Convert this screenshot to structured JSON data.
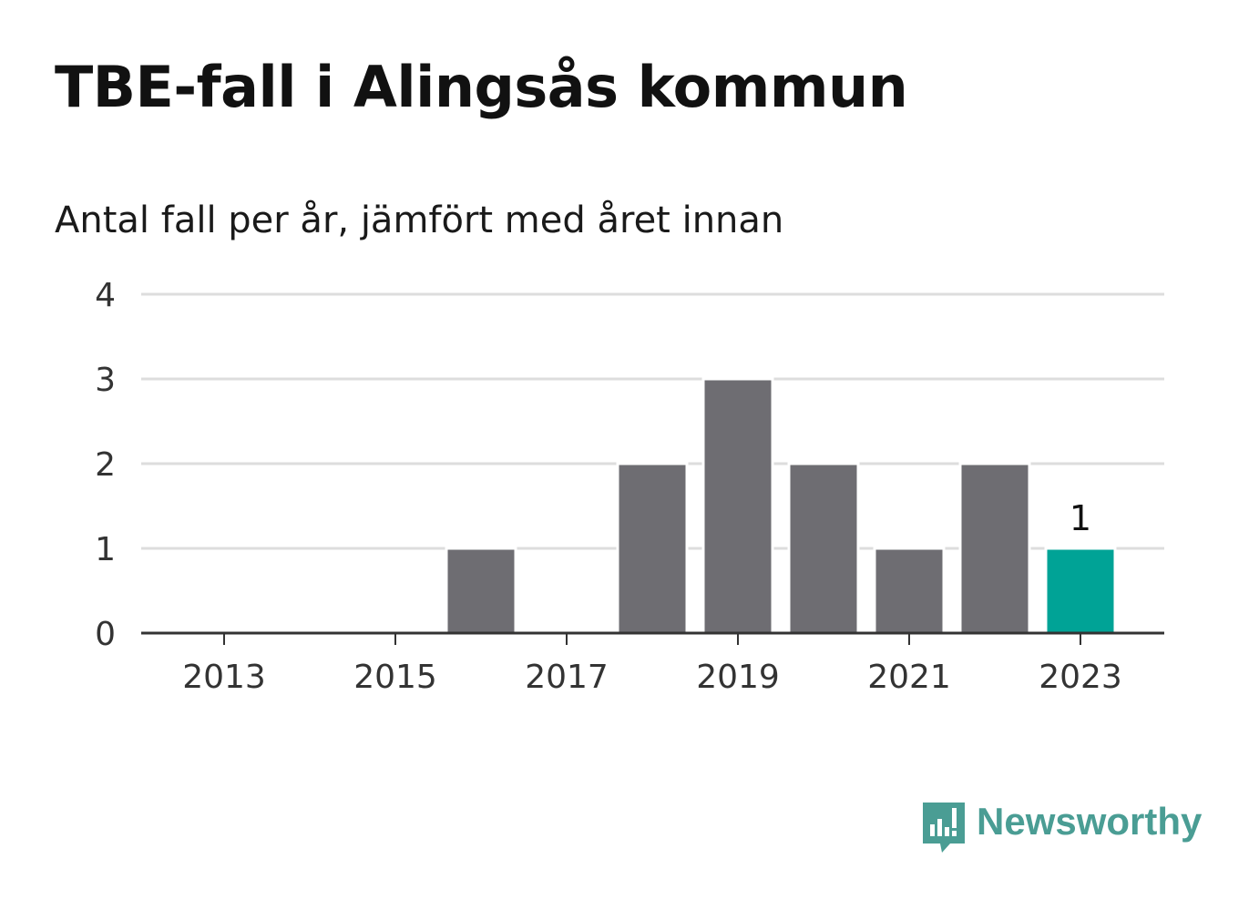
{
  "title": "TBE-fall i Alingsås kommun",
  "subtitle": "Antal fall per år, jämfört med året innan",
  "brand": {
    "name": "Newsworthy",
    "color": "#4a9d94",
    "icon": "bar-chart-speech-bubble-icon"
  },
  "chart_data": {
    "type": "bar",
    "categories": [
      "2013",
      "2014",
      "2015",
      "2016",
      "2017",
      "2018",
      "2019",
      "2020",
      "2021",
      "2022",
      "2023"
    ],
    "values": [
      0,
      0,
      0,
      1,
      0,
      2,
      3,
      2,
      1,
      2,
      1
    ],
    "x_tick_labels": [
      "2013",
      "2015",
      "2017",
      "2019",
      "2021",
      "2023"
    ],
    "y_ticks": [
      0,
      1,
      2,
      3,
      4
    ],
    "ylim": [
      0,
      4
    ],
    "grid": true,
    "highlight_index": 10,
    "highlight_label": "1",
    "colors": {
      "bar": "#6e6d72",
      "highlight": "#00a396",
      "grid": "#dddddd",
      "axis": "#333333",
      "tick_text": "#333333"
    }
  }
}
